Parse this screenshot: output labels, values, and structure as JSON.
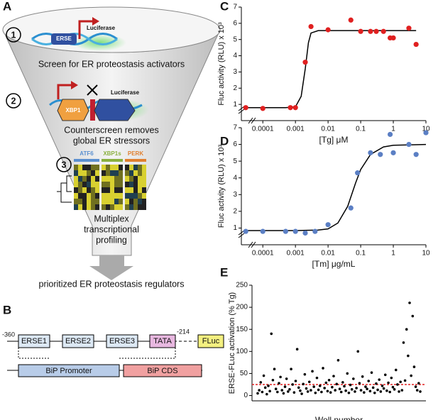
{
  "panel_a": {
    "label": "A",
    "steps": [
      {
        "number": "1",
        "element": "ERSE",
        "reporter": "Luciferase",
        "caption": [
          "Screen for ER proteostasis activators"
        ]
      },
      {
        "number": "2",
        "element": "XBP1",
        "reporter": "Luciferase",
        "caption": [
          "Counterscreen removes",
          "global ER stressors"
        ]
      },
      {
        "number": "3",
        "columns": [
          "ATF6",
          "XBP1s",
          "PERK"
        ],
        "caption": [
          "Multiplex",
          "transcriptional",
          "profiling"
        ]
      }
    ],
    "output": "prioritized ER proteostasis regulators"
  },
  "panel_b": {
    "label": "B",
    "start": "-360",
    "elements": [
      "ERSE1",
      "ERSE2",
      "ERSE3",
      "TATA"
    ],
    "end": "-214",
    "reporter": "FLuc",
    "promoter": "BiP Promoter",
    "cds": "BiP CDS"
  },
  "chart_data": [
    {
      "type": "scatter",
      "label": "C",
      "xlabel": "[Tg] μM",
      "ylabel": "Fluc activity (RLU) x 10³",
      "log_x": true,
      "color": "#e02020",
      "x": [
        3e-05,
        0.0001,
        0.0007,
        0.001,
        0.002,
        0.003,
        0.01,
        0.05,
        0.1,
        0.2,
        0.3,
        0.5,
        0.8,
        1,
        3,
        5
      ],
      "values": [
        0.8,
        0.75,
        0.8,
        0.8,
        3.6,
        5.8,
        5.6,
        6.2,
        5.5,
        5.5,
        5.5,
        5.5,
        5.1,
        5.1,
        5.7,
        4.7
      ],
      "fit_x": [
        3e-05,
        0.0005,
        0.001,
        0.0015,
        0.002,
        0.0025,
        0.003,
        0.005,
        0.01,
        5
      ],
      "fit_values": [
        0.8,
        0.8,
        0.85,
        1.5,
        3.2,
        4.8,
        5.4,
        5.55,
        5.55,
        5.55
      ],
      "xlim": [
        2.2e-05,
        10
      ],
      "xticks": [
        0.0001,
        0.001,
        0.01,
        0.1,
        1,
        10
      ],
      "ylim": [
        0,
        7
      ],
      "yticks": [
        1,
        2,
        3,
        4,
        5,
        6,
        7
      ]
    },
    {
      "type": "scatter",
      "label": "D",
      "xlabel": "[Tm] μg/mL",
      "ylabel": "Fluc activity (RLU) x 10³",
      "log_x": true,
      "color": "#5b7fc4",
      "x": [
        3e-05,
        0.0001,
        0.0005,
        0.001,
        0.002,
        0.004,
        0.01,
        0.05,
        0.08,
        0.2,
        0.4,
        0.8,
        1,
        3,
        5,
        10
      ],
      "values": [
        0.8,
        0.8,
        0.8,
        0.8,
        0.7,
        0.8,
        1.2,
        2.2,
        4.3,
        5.5,
        5.4,
        6.6,
        5.5,
        6,
        5.4,
        6.7
      ],
      "fit_x": [
        3e-05,
        0.001,
        0.005,
        0.01,
        0.02,
        0.04,
        0.07,
        0.1,
        0.2,
        0.5,
        1,
        10
      ],
      "fit_values": [
        0.85,
        0.85,
        0.88,
        0.95,
        1.3,
        2.3,
        3.7,
        4.5,
        5.4,
        5.85,
        5.95,
        6.0
      ],
      "xlim": [
        2.2e-05,
        10
      ],
      "xticks": [
        0.0001,
        0.001,
        0.01,
        0.1,
        1,
        10
      ],
      "ylim": [
        0,
        7
      ],
      "yticks": [
        1,
        2,
        3,
        4,
        5,
        6,
        7
      ]
    },
    {
      "type": "scatter",
      "label": "E",
      "xlabel": "Well number",
      "ylabel": "ERSE-FLuc activation (% Tg)",
      "color": "#000000",
      "threshold": 25,
      "threshold_color": "#e02020",
      "values": [
        5,
        12,
        30,
        8,
        45,
        18,
        3,
        22,
        10,
        140,
        35,
        60,
        15,
        8,
        28,
        42,
        12,
        5,
        20,
        38,
        9,
        14,
        60,
        25,
        7,
        33,
        105,
        18,
        11,
        4,
        26,
        48,
        16,
        9,
        31,
        12,
        55,
        20,
        6,
        40,
        13,
        22,
        8,
        62,
        17,
        29,
        10,
        35,
        7,
        19,
        44,
        12,
        26,
        80,
        15,
        8,
        30,
        21,
        11,
        50,
        6,
        24,
        14,
        38,
        9,
        17,
        100,
        28,
        12,
        43,
        7,
        20,
        15,
        33,
        10,
        52,
        18,
        6,
        27,
        13,
        36,
        9,
        22,
        16,
        47,
        11,
        29,
        8,
        40,
        19,
        14,
        58,
        25,
        9,
        31,
        12,
        120,
        34,
        150,
        90,
        210,
        45,
        180,
        65,
        20,
        12,
        28,
        9
      ],
      "ylim": [
        -12,
        250
      ],
      "yticks": [
        0,
        50,
        100,
        150,
        200,
        250
      ]
    }
  ]
}
